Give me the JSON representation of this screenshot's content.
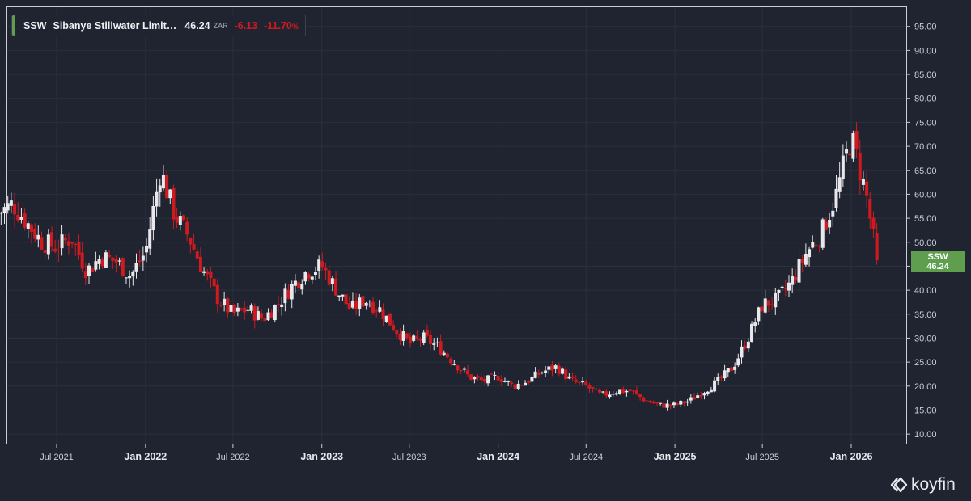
{
  "legend": {
    "ticker": "SSW",
    "name": "Sibanye Stillwater Limit…",
    "price": "46.24",
    "currency": "ZAR",
    "change": "-6.13",
    "change_pct": "-11.70",
    "pct_symbol": "%"
  },
  "price_tag": {
    "ticker": "SSW",
    "price": "46.24"
  },
  "brand": "koyfin",
  "colors": {
    "background": "#1f2430",
    "up": "#e8e8ec",
    "down": "#d11a1f",
    "accent": "#5e9e4e",
    "grid": "#2b303b"
  },
  "chart_data": {
    "type": "candlestick",
    "interval": "weekly",
    "y_axis_side": "right",
    "ylim": [
      8,
      99
    ],
    "y_ticks": [
      "10.00",
      "15.00",
      "20.00",
      "25.00",
      "30.00",
      "35.00",
      "40.00",
      "45.00",
      "50.00",
      "55.00",
      "60.00",
      "65.00",
      "70.00",
      "75.00",
      "80.00",
      "85.00",
      "90.00",
      "95.00"
    ],
    "x_ticks": [
      {
        "label": "Jul 2021",
        "date": "2021-07-01",
        "bold": false
      },
      {
        "label": "Jan 2022",
        "date": "2022-01-01",
        "bold": true
      },
      {
        "label": "Jul 2022",
        "date": "2022-07-01",
        "bold": false
      },
      {
        "label": "Jan 2023",
        "date": "2023-01-01",
        "bold": true
      },
      {
        "label": "Jul 2023",
        "date": "2023-07-01",
        "bold": false
      },
      {
        "label": "Jan 2024",
        "date": "2024-01-01",
        "bold": true
      },
      {
        "label": "Jul 2024",
        "date": "2024-07-01",
        "bold": false
      },
      {
        "label": "Jan 2025",
        "date": "2025-01-01",
        "bold": true
      },
      {
        "label": "Jul 2025",
        "date": "2025-07-01",
        "bold": false
      },
      {
        "label": "Jan 2026",
        "date": "2026-01-01",
        "bold": true
      }
    ],
    "start_date": "2021-03-01",
    "end_date": "2026-02-23",
    "last_close": 46.24,
    "series": [
      {
        "date": "2021-03-01",
        "close": 56
      },
      {
        "date": "2021-04-01",
        "close": 58
      },
      {
        "date": "2021-05-01",
        "close": 54
      },
      {
        "date": "2021-06-01",
        "close": 50
      },
      {
        "date": "2021-07-01",
        "close": 49
      },
      {
        "date": "2021-08-01",
        "close": 51
      },
      {
        "date": "2021-09-01",
        "close": 44
      },
      {
        "date": "2021-10-01",
        "close": 47
      },
      {
        "date": "2021-11-01",
        "close": 46
      },
      {
        "date": "2021-12-01",
        "close": 43
      },
      {
        "date": "2022-01-01",
        "close": 48
      },
      {
        "date": "2022-02-01",
        "close": 65
      },
      {
        "date": "2022-03-01",
        "close": 56
      },
      {
        "date": "2022-04-01",
        "close": 51
      },
      {
        "date": "2022-05-01",
        "close": 44
      },
      {
        "date": "2022-06-01",
        "close": 38
      },
      {
        "date": "2022-07-01",
        "close": 35
      },
      {
        "date": "2022-08-01",
        "close": 36
      },
      {
        "date": "2022-09-01",
        "close": 34
      },
      {
        "date": "2022-10-01",
        "close": 37
      },
      {
        "date": "2022-11-01",
        "close": 41
      },
      {
        "date": "2022-12-01",
        "close": 44
      },
      {
        "date": "2023-01-01",
        "close": 45
      },
      {
        "date": "2023-02-01",
        "close": 40
      },
      {
        "date": "2023-03-01",
        "close": 36
      },
      {
        "date": "2023-04-01",
        "close": 38
      },
      {
        "date": "2023-05-01",
        "close": 36
      },
      {
        "date": "2023-06-01",
        "close": 32
      },
      {
        "date": "2023-07-01",
        "close": 29
      },
      {
        "date": "2023-08-01",
        "close": 30
      },
      {
        "date": "2023-09-01",
        "close": 28
      },
      {
        "date": "2023-10-01",
        "close": 25
      },
      {
        "date": "2023-11-01",
        "close": 22
      },
      {
        "date": "2023-12-01",
        "close": 21
      },
      {
        "date": "2024-01-01",
        "close": 22
      },
      {
        "date": "2024-02-01",
        "close": 20
      },
      {
        "date": "2024-03-01",
        "close": 21
      },
      {
        "date": "2024-04-01",
        "close": 23
      },
      {
        "date": "2024-05-01",
        "close": 24
      },
      {
        "date": "2024-06-01",
        "close": 21
      },
      {
        "date": "2024-07-01",
        "close": 20
      },
      {
        "date": "2024-08-01",
        "close": 18
      },
      {
        "date": "2024-09-01",
        "close": 19
      },
      {
        "date": "2024-10-01",
        "close": 19
      },
      {
        "date": "2024-11-01",
        "close": 17
      },
      {
        "date": "2024-12-01",
        "close": 16
      },
      {
        "date": "2025-01-01",
        "close": 16
      },
      {
        "date": "2025-02-01",
        "close": 17
      },
      {
        "date": "2025-03-01",
        "close": 19
      },
      {
        "date": "2025-04-01",
        "close": 21
      },
      {
        "date": "2025-05-01",
        "close": 24
      },
      {
        "date": "2025-06-01",
        "close": 30
      },
      {
        "date": "2025-07-01",
        "close": 37
      },
      {
        "date": "2025-08-01",
        "close": 38
      },
      {
        "date": "2025-09-01",
        "close": 42
      },
      {
        "date": "2025-10-01",
        "close": 48
      },
      {
        "date": "2025-11-01",
        "close": 52
      },
      {
        "date": "2025-12-01",
        "close": 60
      },
      {
        "date": "2026-01-01",
        "close": 72
      },
      {
        "date": "2026-02-01",
        "close": 60
      },
      {
        "date": "2026-02-23",
        "close": 46.24
      }
    ]
  }
}
